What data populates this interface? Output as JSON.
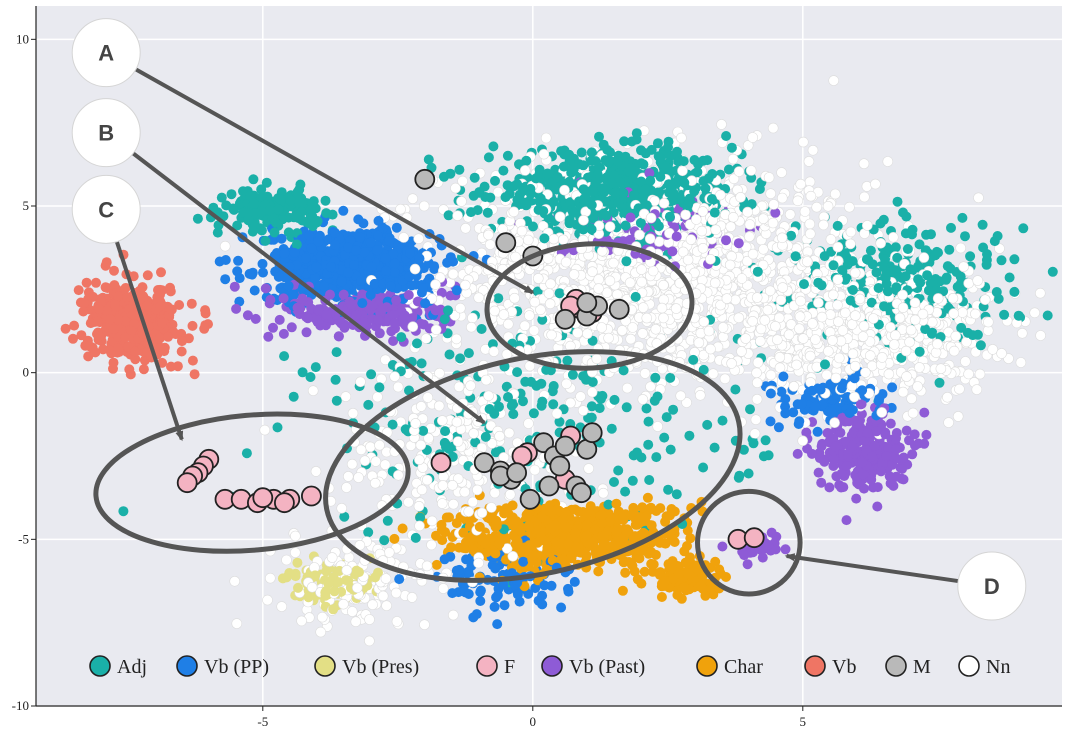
{
  "chart_data": {
    "type": "scatter",
    "title": "",
    "xlabel": "",
    "ylabel": "",
    "xlim": [
      -9.2,
      9.8
    ],
    "ylim": [
      -10,
      11
    ],
    "x_ticks": [
      -5,
      0,
      5
    ],
    "y_ticks": [
      10,
      5,
      0,
      -5,
      -10
    ],
    "x_tick_labels": [
      "-5",
      "0",
      "5"
    ],
    "y_tick_labels": [
      "10",
      "5",
      "0",
      "-5",
      "-10"
    ],
    "grid": true,
    "background": "#e9eaf0",
    "legend_position": "bottom",
    "legend": [
      {
        "label": "Adj",
        "color": "#1ab0a8"
      },
      {
        "label": "Vb (PP)",
        "color": "#1f7fe6"
      },
      {
        "label": "Vb (Pres)",
        "color": "#e3df85"
      },
      {
        "label": "F",
        "color": "#f4b3c2"
      },
      {
        "label": "Vb (Past)",
        "color": "#8e5bd6"
      },
      {
        "label": "Char",
        "color": "#f0a20c"
      },
      {
        "label": "Vb",
        "color": "#ef7564"
      },
      {
        "label": "M",
        "color": "#b9b9b9"
      },
      {
        "label": "Nn",
        "color": "#ffffff"
      }
    ],
    "series": [
      {
        "name": "Nn",
        "color": "#ffffff",
        "clusters": [
          {
            "cx": 2.3,
            "cy": 3.0,
            "sx": 3.3,
            "sy": 2.8,
            "n": 1500
          },
          {
            "cx": 6.3,
            "cy": 1.2,
            "sx": 1.8,
            "sy": 1.7,
            "n": 600
          },
          {
            "cx": -1.5,
            "cy": -2.4,
            "sx": 1.8,
            "sy": 2.4,
            "n": 250
          },
          {
            "cx": -3.3,
            "cy": -6.4,
            "sx": 1.2,
            "sy": 1.1,
            "n": 150
          }
        ]
      },
      {
        "name": "Adj",
        "color": "#1ab0a8",
        "clusters": [
          {
            "cx": 1.5,
            "cy": 5.4,
            "sx": 1.9,
            "sy": 1.0,
            "n": 700
          },
          {
            "cx": -4.8,
            "cy": 4.9,
            "sx": 0.7,
            "sy": 0.5,
            "n": 180
          },
          {
            "cx": 6.8,
            "cy": 2.8,
            "sx": 1.8,
            "sy": 1.6,
            "n": 250
          },
          {
            "cx": 0.0,
            "cy": -1.5,
            "sx": 3.5,
            "sy": 3.0,
            "n": 250
          }
        ]
      },
      {
        "name": "Vb (PP)",
        "color": "#1f7fe6",
        "clusters": [
          {
            "cx": -3.4,
            "cy": 3.2,
            "sx": 1.3,
            "sy": 0.9,
            "n": 650
          },
          {
            "cx": 5.5,
            "cy": -0.8,
            "sx": 0.9,
            "sy": 0.6,
            "n": 120
          },
          {
            "cx": -0.6,
            "cy": -6.2,
            "sx": 1.0,
            "sy": 0.8,
            "n": 90
          }
        ]
      },
      {
        "name": "Vb (Past)",
        "color": "#8e5bd6",
        "clusters": [
          {
            "cx": -3.0,
            "cy": 1.8,
            "sx": 1.3,
            "sy": 0.6,
            "n": 250
          },
          {
            "cx": 6.1,
            "cy": -2.3,
            "sx": 0.7,
            "sy": 1.0,
            "n": 230
          },
          {
            "cx": 2.0,
            "cy": 4.4,
            "sx": 1.4,
            "sy": 0.9,
            "n": 130
          },
          {
            "cx": 4.2,
            "cy": -5.2,
            "sx": 0.5,
            "sy": 0.3,
            "n": 35
          }
        ]
      },
      {
        "name": "Char",
        "color": "#f0a20c",
        "clusters": [
          {
            "cx": 0.6,
            "cy": -4.9,
            "sx": 1.8,
            "sy": 0.8,
            "n": 650
          },
          {
            "cx": 2.8,
            "cy": -6.2,
            "sx": 0.7,
            "sy": 0.5,
            "n": 80
          }
        ]
      },
      {
        "name": "Vb",
        "color": "#ef7564",
        "clusters": [
          {
            "cx": -7.4,
            "cy": 1.5,
            "sx": 0.7,
            "sy": 0.9,
            "n": 450
          }
        ]
      },
      {
        "name": "Vb (Pres)",
        "color": "#e3df85",
        "clusters": [
          {
            "cx": -3.7,
            "cy": -6.4,
            "sx": 0.7,
            "sy": 0.5,
            "n": 90
          }
        ]
      }
    ],
    "highlight_series": [
      {
        "name": "F",
        "color": "#f4b3c2",
        "points": [
          [
            -6.0,
            -2.6
          ],
          [
            -6.1,
            -2.8
          ],
          [
            -6.2,
            -3.0
          ],
          [
            -6.3,
            -3.1
          ],
          [
            -6.4,
            -3.3
          ],
          [
            -5.7,
            -3.8
          ],
          [
            -5.4,
            -3.8
          ],
          [
            -5.1,
            -3.9
          ],
          [
            -4.8,
            -3.8
          ],
          [
            -4.5,
            -3.8
          ],
          [
            -4.1,
            -3.7
          ],
          [
            -4.6,
            -3.9
          ],
          [
            -5.0,
            -3.75
          ],
          [
            0.8,
            2.2
          ],
          [
            0.9,
            1.9
          ],
          [
            1.1,
            1.8
          ],
          [
            0.7,
            2.0
          ],
          [
            -1.7,
            -2.7
          ],
          [
            -0.1,
            -2.4
          ],
          [
            0.6,
            -3.2
          ],
          [
            0.7,
            -1.9
          ],
          [
            -0.2,
            -2.5
          ],
          [
            3.8,
            -5.0
          ],
          [
            4.1,
            -4.95
          ]
        ]
      },
      {
        "name": "M",
        "color": "#b9b9b9",
        "points": [
          [
            -2.0,
            5.8
          ],
          [
            -0.5,
            3.9
          ],
          [
            0.0,
            3.5
          ],
          [
            0.6,
            1.6
          ],
          [
            1.0,
            1.7
          ],
          [
            1.2,
            2.0
          ],
          [
            1.6,
            1.9
          ],
          [
            1.0,
            2.1
          ],
          [
            -0.9,
            -2.7
          ],
          [
            -0.6,
            -2.95
          ],
          [
            -0.4,
            -3.2
          ],
          [
            -0.6,
            -3.1
          ],
          [
            -0.3,
            -3.0
          ],
          [
            0.2,
            -2.1
          ],
          [
            0.4,
            -2.5
          ],
          [
            0.6,
            -2.2
          ],
          [
            1.0,
            -2.3
          ],
          [
            1.1,
            -1.8
          ],
          [
            0.8,
            -3.4
          ],
          [
            0.3,
            -3.4
          ],
          [
            -0.05,
            -3.8
          ],
          [
            0.9,
            -3.6
          ],
          [
            0.5,
            -2.8
          ]
        ]
      }
    ],
    "regions": [
      {
        "cx": 1.05,
        "cy": 2.0,
        "rx": 1.9,
        "ry": 1.15,
        "rot": -3
      },
      {
        "cx": 0.0,
        "cy": -2.8,
        "rx": 3.9,
        "ry": 2.0,
        "rot": -12
      },
      {
        "cx": -5.2,
        "cy": -3.3,
        "rx": 2.9,
        "ry": 1.25,
        "rot": -5
      },
      {
        "cx": 4.0,
        "cy": -5.1,
        "rx": 0.95,
        "ry": 0.95,
        "rot": 0
      }
    ],
    "callouts": [
      {
        "label": "A",
        "from": [
          -7.9,
          9.6
        ],
        "to": [
          0.0,
          2.4
        ]
      },
      {
        "label": "B",
        "from": [
          -7.9,
          7.2
        ],
        "to": [
          -0.9,
          -1.5
        ]
      },
      {
        "label": "C",
        "from": [
          -7.9,
          4.9
        ],
        "to": [
          -6.5,
          -2.0
        ]
      },
      {
        "label": "D",
        "from": [
          8.5,
          -6.4
        ],
        "to": [
          4.7,
          -5.5
        ]
      }
    ]
  }
}
